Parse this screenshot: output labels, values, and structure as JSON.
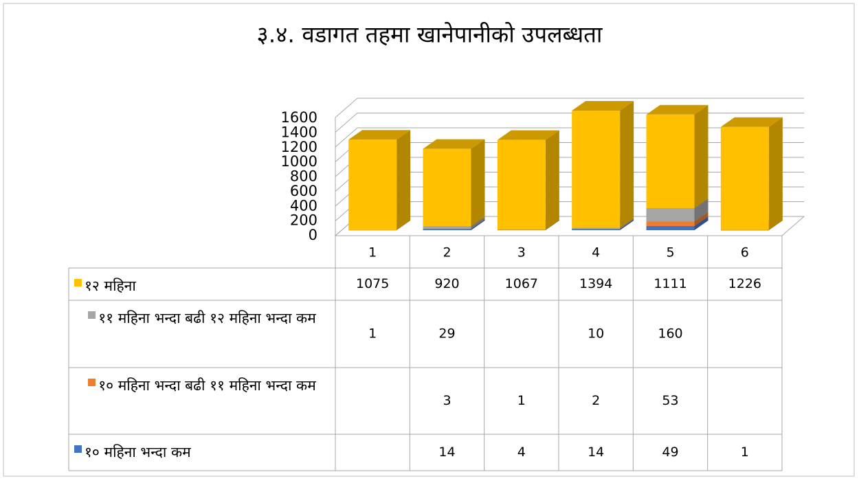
{
  "chart_data": {
    "type": "bar3d_stacked",
    "title": "३.४. वडागत तहमा खानेपानीको उपलब्धता",
    "categories": [
      "1",
      "2",
      "3",
      "4",
      "5",
      "6"
    ],
    "series": [
      {
        "name": "१२ महिना",
        "color": "#FFC000",
        "values": [
          1075,
          920,
          1067,
          1394,
          1111,
          1226
        ]
      },
      {
        "name": "११ महिना भन्दा बढी १२ महिना भन्दा कम",
        "color": "#A5A5A5",
        "values": [
          1,
          29,
          null,
          10,
          160,
          null
        ]
      },
      {
        "name": "१० महिना भन्दा बढी ११ महिना भन्दा कम",
        "color": "#ED7D31",
        "values": [
          null,
          3,
          1,
          2,
          53,
          null
        ]
      },
      {
        "name": "१० महिना भन्दा कम",
        "color": "#4472C4",
        "values": [
          null,
          14,
          4,
          14,
          49,
          1
        ]
      }
    ],
    "stack_order": "bottom-up from last series",
    "ylim": [
      0,
      1600
    ],
    "yticks": [
      0,
      200,
      400,
      600,
      800,
      1000,
      1200,
      1400,
      1600
    ],
    "grid": true
  }
}
